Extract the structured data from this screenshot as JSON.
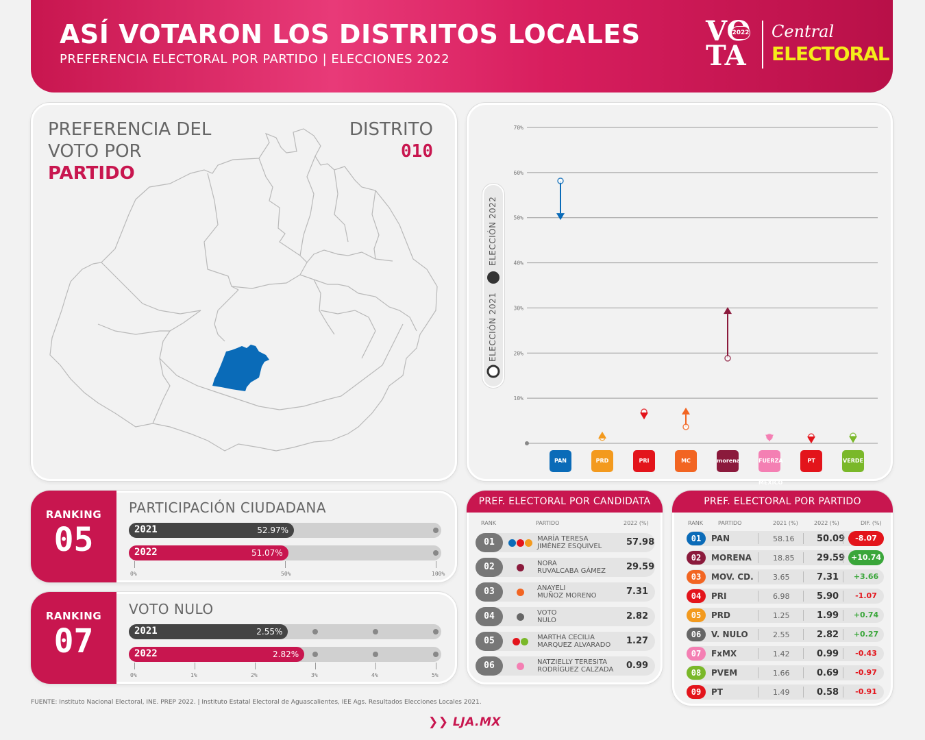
{
  "header": {
    "title": "ASÍ VOTARON LOS DISTRITOS LOCALES",
    "subtitle": "PREFERENCIA ELECTORAL POR PARTIDO | ELECCIONES 2022",
    "logo": {
      "vo": "VO",
      "ta": "TA",
      "year": "2022",
      "central": "Central",
      "electoral": "ELECTORAL"
    }
  },
  "map": {
    "heading_line1": "PREFERENCIA DEL",
    "heading_line2": "VOTO POR",
    "heading_line3": "PARTIDO",
    "district_label": "DISTRITO",
    "district_number": "010",
    "highlight_color": "#0a6bb8"
  },
  "chart_data": {
    "type": "dumbbell",
    "yticks": [
      "10%",
      "20%",
      "30%",
      "40%",
      "50%",
      "60%",
      "70%"
    ],
    "ylim": [
      0,
      70
    ],
    "legend": {
      "series_2021": "ELECCIÓN 2021",
      "series_2022": "ELECCIÓN 2022"
    },
    "categories": [
      "PAN",
      "PRD",
      "PRI",
      "MC",
      "morena",
      "FUERZA MÉXICO",
      "PT",
      "VERDE"
    ],
    "values_2021": [
      58.16,
      1.25,
      6.98,
      3.65,
      18.85,
      1.42,
      1.49,
      1.66
    ],
    "values_2022": [
      50.09,
      1.99,
      5.9,
      7.31,
      29.59,
      0.99,
      0.58,
      0.69
    ],
    "colors": [
      "#0a6bb8",
      "#f39a1e",
      "#e3141b",
      "#f26522",
      "#8b1a3c",
      "#f47fb3",
      "#e3141b",
      "#7ab829"
    ],
    "logo_labels": [
      "PAN",
      "PRD",
      "PRI",
      "MC",
      "morena",
      "FUERZA MÉXICO",
      "PT",
      "VERDE"
    ]
  },
  "participacion": {
    "ranking_word": "RANKING",
    "ranking": "05",
    "title": "PARTICIPACIÓN CIUDADANA",
    "bars": [
      {
        "year": "2021",
        "value": 52.97,
        "label": "52.97%"
      },
      {
        "year": "2022",
        "value": 51.07,
        "label": "51.07%"
      }
    ],
    "max": 100,
    "ticks": [
      "0%",
      "50%",
      "100%"
    ]
  },
  "nulo": {
    "ranking_word": "RANKING",
    "ranking": "07",
    "title": "VOTO NULO",
    "bars": [
      {
        "year": "2021",
        "value": 2.55,
        "label": "2.55%"
      },
      {
        "year": "2022",
        "value": 2.82,
        "label": "2.82%"
      }
    ],
    "max": 5,
    "ticks": [
      "0%",
      "1%",
      "2%",
      "3%",
      "4%",
      "5%"
    ]
  },
  "candidatas": {
    "title": "PREF. ELECTORAL POR CANDIDATA",
    "col_rank": "RANK",
    "col_party": "PARTIDO",
    "col_2022": "2022 (%)",
    "rows": [
      {
        "rank": "01",
        "name1": "MARÍA TERESA",
        "name2": "JIMÉNEZ ESQUIVEL",
        "value": "57.98",
        "dots": [
          "#0a6bb8",
          "#e3141b",
          "#f39a1e"
        ]
      },
      {
        "rank": "02",
        "name1": "NORA",
        "name2": "RUVALCABA GÁMEZ",
        "value": "29.59",
        "dots": [
          "#8b1a3c"
        ]
      },
      {
        "rank": "03",
        "name1": "ANAYELI",
        "name2": "MUÑOZ MORENO",
        "value": "7.31",
        "dots": [
          "#f26522"
        ]
      },
      {
        "rank": "04",
        "name1": "VOTO",
        "name2": "NULO",
        "value": "2.82",
        "dots": [
          "#666666"
        ]
      },
      {
        "rank": "05",
        "name1": "MARTHA CECILIA",
        "name2": "MARQUEZ ALVARADO",
        "value": "1.27",
        "dots": [
          "#e3141b",
          "#7ab829"
        ]
      },
      {
        "rank": "06",
        "name1": "NATZIELLY TERESITA",
        "name2": "RODRÍGUEZ CALZADA",
        "value": "0.99",
        "dots": [
          "#f47fb3"
        ]
      }
    ]
  },
  "partidos": {
    "title": "PREF. ELECTORAL POR PARTIDO",
    "col_rank": "RANK",
    "col_party": "PARTIDO",
    "col_2021": "2021 (%)",
    "col_2022": "2022 (%)",
    "col_dif": "DIF. (%)",
    "rows": [
      {
        "rank": "01",
        "name": "PAN",
        "v2021": "58.16",
        "v2022": "50.09",
        "dif": "-8.07",
        "color": "#0a6bb8",
        "highlight": "neg"
      },
      {
        "rank": "02",
        "name": "MORENA",
        "v2021": "18.85",
        "v2022": "29.59",
        "dif": "+10.74",
        "color": "#8b1a3c",
        "highlight": "pos"
      },
      {
        "rank": "03",
        "name": "MOV. CD.",
        "v2021": "3.65",
        "v2022": "7.31",
        "dif": "+3.66",
        "color": "#f26522",
        "highlight": ""
      },
      {
        "rank": "04",
        "name": "PRI",
        "v2021": "6.98",
        "v2022": "5.90",
        "dif": "-1.07",
        "color": "#e3141b",
        "highlight": ""
      },
      {
        "rank": "05",
        "name": "PRD",
        "v2021": "1.25",
        "v2022": "1.99",
        "dif": "+0.74",
        "color": "#f39a1e",
        "highlight": ""
      },
      {
        "rank": "06",
        "name": "V. NULO",
        "v2021": "2.55",
        "v2022": "2.82",
        "dif": "+0.27",
        "color": "#666666",
        "highlight": ""
      },
      {
        "rank": "07",
        "name": "FxMX",
        "v2021": "1.42",
        "v2022": "0.99",
        "dif": "-0.43",
        "color": "#f47fb3",
        "highlight": ""
      },
      {
        "rank": "08",
        "name": "PVEM",
        "v2021": "1.66",
        "v2022": "0.69",
        "dif": "-0.97",
        "color": "#7ab829",
        "highlight": ""
      },
      {
        "rank": "09",
        "name": "PT",
        "v2021": "1.49",
        "v2022": "0.58",
        "dif": "-0.91",
        "color": "#e3141b",
        "highlight": ""
      }
    ]
  },
  "footer": {
    "source": "FUENTE: Instituto Nacional Electoral, INE. PREP 2022. | Instituto Estatal Electoral de Aguascalientes, IEE Ags. Resultados Elecciones Locales 2021.",
    "logo": "LJA.MX"
  }
}
